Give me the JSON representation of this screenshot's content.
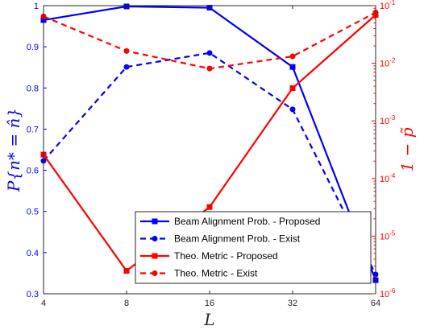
{
  "chart_data": {
    "type": "line",
    "xlabel": "L",
    "ylabel_left": "P{n* = n̂}",
    "ylabel_right": "1 − p̃",
    "x_ticks": [
      4,
      8,
      16,
      32,
      64
    ],
    "x_scale": "log2",
    "xlim": [
      4,
      64
    ],
    "ylim_left": [
      0.3,
      1
    ],
    "y_ticks_left": [
      "0.3",
      "0.4",
      "0.5",
      "0.6",
      "0.7",
      "0.8",
      "0.9",
      "1"
    ],
    "ylim_right": [
      1e-06,
      0.1
    ],
    "y_scale_right": "log10",
    "y_ticks_right": [
      {
        "base": "10",
        "exp": "-6"
      },
      {
        "base": "10",
        "exp": "-5"
      },
      {
        "base": "10",
        "exp": "-4"
      },
      {
        "base": "10",
        "exp": "-3"
      },
      {
        "base": "10",
        "exp": "-2"
      },
      {
        "base": "10",
        "exp": "-1"
      }
    ],
    "legend_placement": "bottom-right",
    "grid": false,
    "series": [
      {
        "name": "Beam Alignment Prob. - Proposed",
        "axis": "left",
        "color": "#0000ff",
        "dash": "solid",
        "marker": "square",
        "x": [
          4,
          8,
          16,
          32,
          64
        ],
        "y": [
          0.965,
          0.998,
          0.995,
          0.851,
          0.333
        ]
      },
      {
        "name": "Beam Alignment Prob. - Exist",
        "axis": "left",
        "color": "#0000ff",
        "dash": "dashed",
        "marker": "circle",
        "x": [
          4,
          8,
          16,
          32,
          64
        ],
        "y": [
          0.623,
          0.851,
          0.885,
          0.748,
          0.347
        ]
      },
      {
        "name": "Theo. Metric - Proposed",
        "axis": "right",
        "color": "#ff0000",
        "dash": "solid",
        "marker": "square",
        "x": [
          4,
          8,
          16,
          32,
          64
        ],
        "y": [
          0.00026,
          2.5e-06,
          3.2e-05,
          0.0037,
          0.069
        ]
      },
      {
        "name": "Theo. Metric - Exist",
        "axis": "right",
        "color": "#ff0000",
        "dash": "dashed",
        "marker": "circle",
        "x": [
          4,
          8,
          16,
          32,
          64
        ],
        "y": [
          0.065,
          0.0163,
          0.0081,
          0.0132,
          0.076
        ]
      }
    ]
  }
}
